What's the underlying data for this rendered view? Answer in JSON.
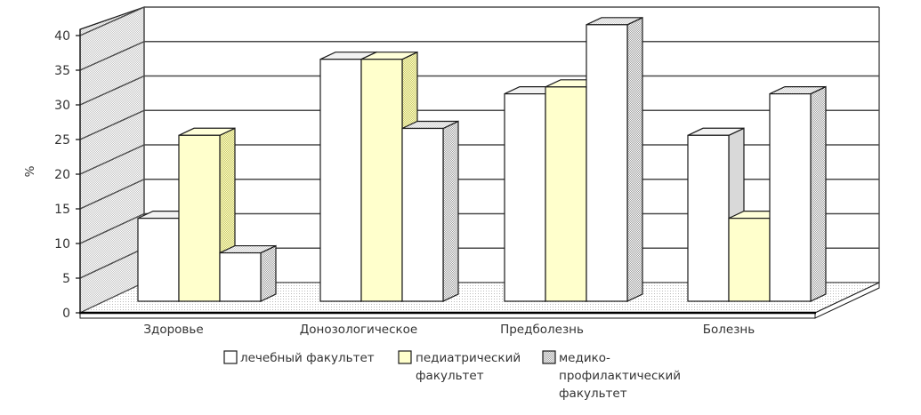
{
  "chart_data": {
    "type": "bar",
    "projection": "3d-perspective",
    "title": "",
    "ylabel": "%",
    "ylim": [
      0,
      40
    ],
    "ytick_step": 5,
    "grid": true,
    "legend_position": "bottom",
    "categories": [
      "Здоровье",
      "Донозологическое",
      "Предболезнь",
      "Болезнь"
    ],
    "series": [
      {
        "name": "лечебный факультет",
        "legend_lines": [
          "лечебный факультет"
        ],
        "values": [
          12,
          35,
          30,
          24
        ],
        "colors": {
          "front": "#ffffff",
          "top": "#f2f2f2",
          "side": "#d9d9d9",
          "swatch": "#ffffff"
        }
      },
      {
        "name": "педиатрический факультет",
        "legend_lines": [
          "педиатрический",
          "факультет"
        ],
        "values": [
          24,
          35,
          31,
          12
        ],
        "colors": {
          "front": "#ffffcc",
          "top": "#ffffd9",
          "side": {
            "base": "#ffffcc",
            "dot": "#c9c96a"
          },
          "swatch": "#ffffcc"
        }
      },
      {
        "name": "медико-профилактический факультет",
        "legend_lines": [
          "медико-",
          "профилактический",
          "факультет"
        ],
        "values": [
          7,
          25,
          40,
          30
        ],
        "colors": {
          "front": "#ffffff",
          "top": {
            "base": "#ffffff",
            "dot": "#c9c9c9"
          },
          "side": {
            "base": "#ffffff",
            "dot": "#9e9e9e"
          },
          "swatch": {
            "base": "#ffffff",
            "dot": "#9e9e9e"
          }
        }
      }
    ],
    "wall_texture": {
      "base": "#ffffff",
      "dot": "#c4c4c4"
    },
    "floor_texture": {
      "base": "#ffffff",
      "dot": "#bbbbbb"
    },
    "gridline_color": "#4a4a4a",
    "outline_color": "#1a1a1a",
    "text_color": "#333333"
  }
}
